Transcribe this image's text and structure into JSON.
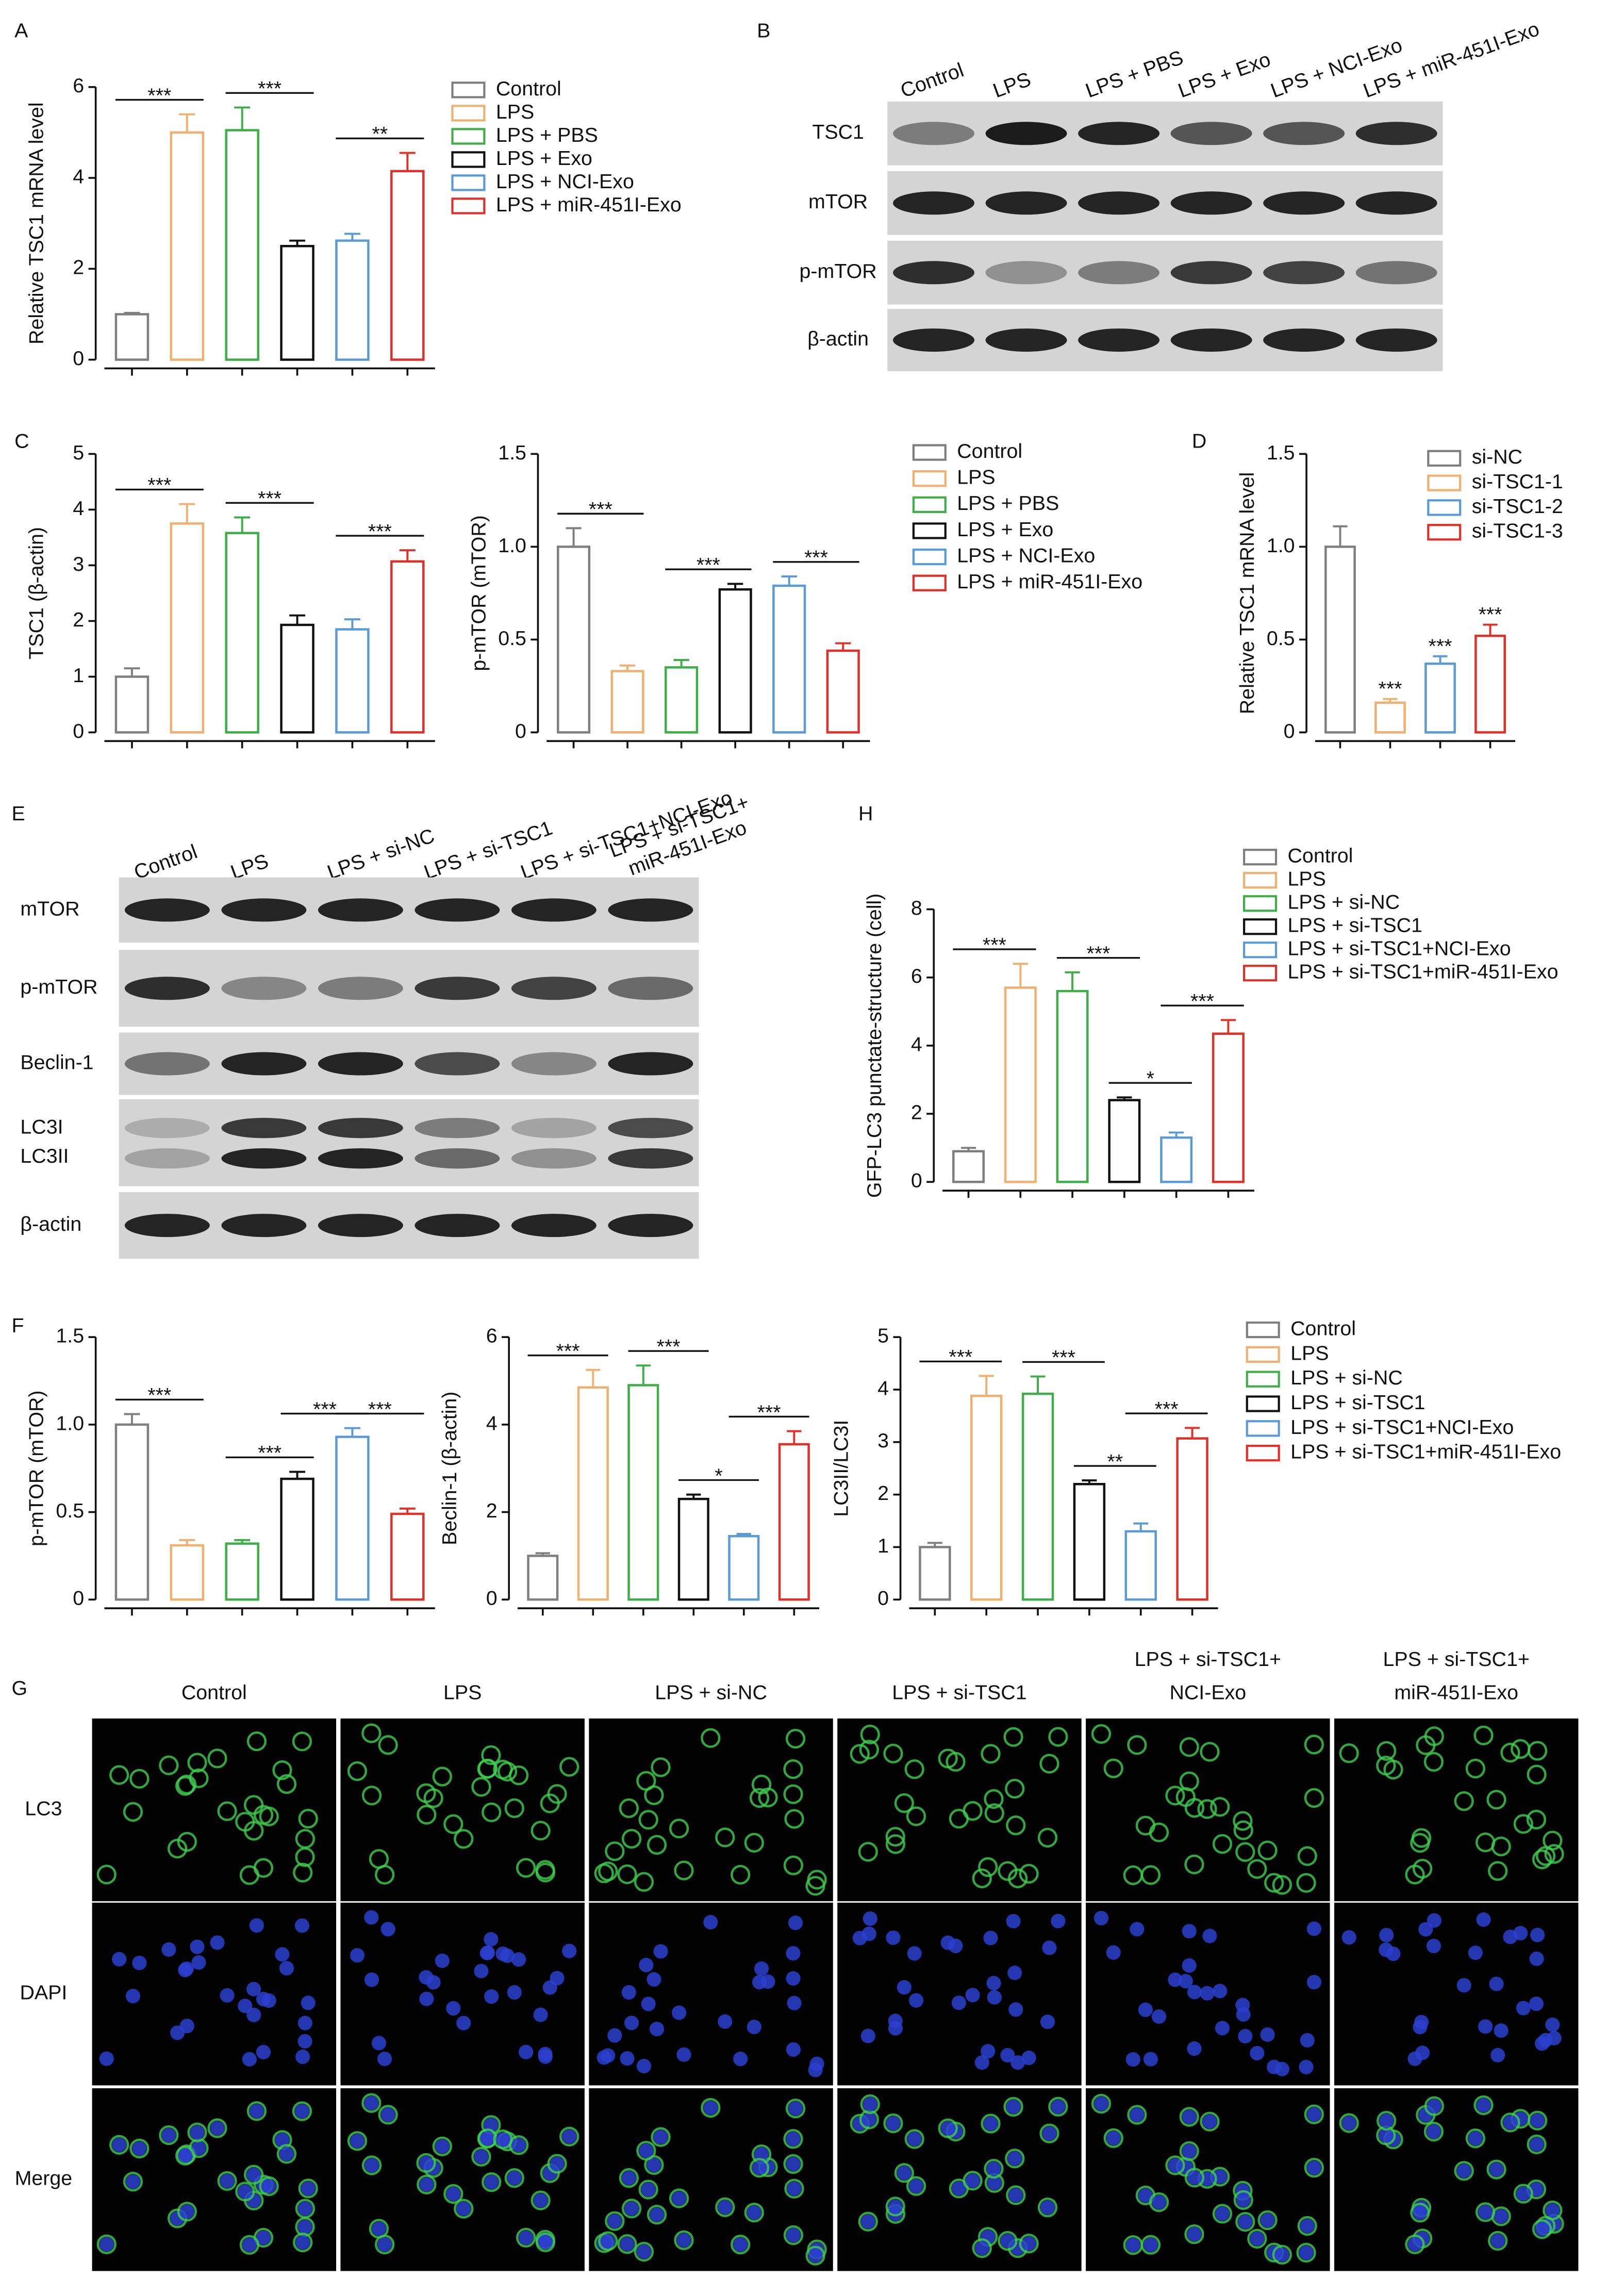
{
  "chart_data": [
    {
      "panel": "A",
      "type": "bar",
      "ylabel": "Relative TSC1 mRNA level",
      "ylim": [
        0,
        6
      ],
      "yticks": [
        0,
        2,
        4,
        6
      ],
      "values": [
        1.0,
        5.0,
        5.05,
        2.5,
        2.62,
        4.15
      ],
      "errors": [
        0.03,
        0.4,
        0.5,
        0.12,
        0.15,
        0.4
      ],
      "colors": [
        "#7f7f7f",
        "#f0b070",
        "#3fae49",
        "#111111",
        "#5b9bd5",
        "#e0302a"
      ],
      "legend": [
        "Control",
        "LPS",
        "LPS + PBS",
        "LPS + Exo",
        "LPS + NCI-Exo",
        "LPS + miR-451I-Exo"
      ],
      "annotations": [
        {
          "text": "***",
          "between": [
            0,
            1
          ]
        },
        {
          "text": "***",
          "between": [
            2,
            3
          ]
        },
        {
          "text": "**",
          "between": [
            4,
            5
          ]
        }
      ]
    },
    {
      "panel": "C",
      "type": "bar",
      "ylabel": "TSC1 (β-actin)",
      "ylim": [
        0,
        5
      ],
      "yticks": [
        0,
        1,
        2,
        3,
        4,
        5
      ],
      "values": [
        1.0,
        3.75,
        3.58,
        1.93,
        1.85,
        3.07
      ],
      "errors": [
        0.15,
        0.35,
        0.28,
        0.17,
        0.18,
        0.2
      ],
      "colors": [
        "#7f7f7f",
        "#f0b070",
        "#3fae49",
        "#111111",
        "#5b9bd5",
        "#e0302a"
      ],
      "annotations": [
        {
          "text": "***",
          "between": [
            0,
            1
          ]
        },
        {
          "text": "***",
          "between": [
            2,
            3
          ]
        },
        {
          "text": "***",
          "between": [
            4,
            5
          ]
        }
      ]
    },
    {
      "type": "bar",
      "ylabel": "p-mTOR (mTOR)",
      "ylim": [
        0,
        1.5
      ],
      "yticks": [
        0,
        0.5,
        {
          "value": 1,
          "label": "1.0"
        },
        1.5
      ],
      "values": [
        1.0,
        0.33,
        0.35,
        0.77,
        0.79,
        0.44
      ],
      "errors": [
        0.1,
        0.03,
        0.04,
        0.03,
        0.05,
        0.04
      ],
      "colors": [
        "#7f7f7f",
        "#f0b070",
        "#3fae49",
        "#111111",
        "#5b9bd5",
        "#e0302a"
      ],
      "legend": [
        "Control",
        "LPS",
        "LPS + PBS",
        "LPS + Exo",
        "LPS + NCI-Exo",
        "LPS + miR-451I-Exo"
      ],
      "annotations": [
        {
          "text": "***",
          "between": [
            0,
            1
          ]
        },
        {
          "text": "***",
          "between": [
            2,
            3
          ]
        },
        {
          "text": "***",
          "between": [
            4,
            5
          ]
        }
      ]
    },
    {
      "panel": "D",
      "type": "bar",
      "ylabel": "Relative TSC1 mRNA level",
      "ylim": [
        0,
        1.5
      ],
      "yticks": [
        0,
        0.5,
        {
          "value": 1,
          "label": "1.0"
        },
        1.5
      ],
      "values": [
        1.0,
        0.16,
        0.37,
        0.52
      ],
      "errors": [
        0.11,
        0.02,
        0.04,
        0.06
      ],
      "colors": [
        "#7f7f7f",
        "#f0b070",
        "#5b9bd5",
        "#e0302a"
      ],
      "legend": [
        "si-NC",
        "si-TSC1-1",
        "si-TSC1-2",
        "si-TSC1-3"
      ],
      "annotations": [
        {
          "text": "***",
          "between": [
            1,
            1
          ]
        },
        {
          "text": "***",
          "between": [
            2,
            2
          ]
        },
        {
          "text": "***",
          "between": [
            3,
            3
          ]
        }
      ]
    },
    {
      "panel": "H",
      "type": "bar",
      "ylabel": "GFP-LC3 punctate-structure (cell)",
      "ylim": [
        0,
        8
      ],
      "yticks": [
        0,
        2,
        4,
        6,
        8
      ],
      "values": [
        0.9,
        5.7,
        5.6,
        2.4,
        1.3,
        4.35
      ],
      "errors": [
        0.1,
        0.7,
        0.55,
        0.08,
        0.15,
        0.4
      ],
      "colors": [
        "#7f7f7f",
        "#f0b070",
        "#3fae49",
        "#111111",
        "#5b9bd5",
        "#e0302a"
      ],
      "legend": [
        "Control",
        "LPS",
        "LPS + si-NC",
        "LPS + si-TSC1",
        "LPS + si-TSC1+NCI-Exo",
        "LPS + si-TSC1+miR-451I-Exo"
      ],
      "annotations": [
        {
          "text": "***",
          "between": [
            0,
            1
          ]
        },
        {
          "text": "***",
          "between": [
            2,
            3
          ]
        },
        {
          "text": "*",
          "between": [
            3,
            4
          ]
        },
        {
          "text": "***",
          "between": [
            4,
            5
          ]
        }
      ]
    },
    {
      "panel": "F",
      "type": "bar",
      "ylabel": "p-mTOR (mTOR)",
      "ylim": [
        0,
        1.5
      ],
      "yticks": [
        0,
        0.5,
        {
          "value": 1,
          "label": "1.0"
        },
        1.5
      ],
      "values": [
        1.0,
        0.31,
        0.32,
        0.69,
        0.93,
        0.49
      ],
      "errors": [
        0.06,
        0.03,
        0.02,
        0.04,
        0.05,
        0.03
      ],
      "colors": [
        "#7f7f7f",
        "#f0b070",
        "#3fae49",
        "#111111",
        "#5b9bd5",
        "#e0302a"
      ],
      "annotations": [
        {
          "text": "***",
          "between": [
            0,
            1
          ]
        },
        {
          "text": "***",
          "between": [
            2,
            3
          ]
        },
        {
          "text": "***",
          "between": [
            3,
            4
          ]
        },
        {
          "text": "***",
          "between": [
            4,
            5
          ]
        }
      ]
    },
    {
      "type": "bar",
      "ylabel": "Beclin-1 (β-actin)",
      "ylim": [
        0,
        6
      ],
      "yticks": [
        0,
        2,
        4,
        6
      ],
      "values": [
        1.0,
        4.85,
        4.9,
        2.3,
        1.45,
        3.55
      ],
      "errors": [
        0.06,
        0.4,
        0.45,
        0.1,
        0.05,
        0.3
      ],
      "colors": [
        "#7f7f7f",
        "#f0b070",
        "#3fae49",
        "#111111",
        "#5b9bd5",
        "#e0302a"
      ],
      "annotations": [
        {
          "text": "***",
          "between": [
            0,
            1
          ]
        },
        {
          "text": "***",
          "between": [
            2,
            3
          ]
        },
        {
          "text": "*",
          "between": [
            3,
            4
          ]
        },
        {
          "text": "***",
          "between": [
            4,
            5
          ]
        }
      ]
    },
    {
      "type": "bar",
      "ylabel": "LC3II/LC3I",
      "ylim": [
        0,
        5
      ],
      "yticks": [
        0,
        1,
        2,
        3,
        4,
        5
      ],
      "values": [
        1.0,
        3.88,
        3.92,
        2.2,
        1.3,
        3.07
      ],
      "errors": [
        0.08,
        0.38,
        0.33,
        0.07,
        0.15,
        0.2
      ],
      "colors": [
        "#7f7f7f",
        "#f0b070",
        "#3fae49",
        "#111111",
        "#5b9bd5",
        "#e0302a"
      ],
      "legend": [
        "Control",
        "LPS",
        "LPS + si-NC",
        "LPS + si-TSC1",
        "LPS + si-TSC1+NCI-Exo",
        "LPS + si-TSC1+miR-451I-Exo"
      ],
      "annotations": [
        {
          "text": "***",
          "between": [
            0,
            1
          ]
        },
        {
          "text": "***",
          "between": [
            2,
            3
          ]
        },
        {
          "text": "**",
          "between": [
            3,
            4
          ]
        },
        {
          "text": "***",
          "between": [
            4,
            5
          ]
        }
      ]
    }
  ],
  "blots": [
    {
      "panel": "B",
      "lanes": [
        "Control",
        "LPS",
        "LPS + PBS",
        "LPS + Exo",
        "LPS + NCI-Exo",
        "LPS + miR-451I-Exo"
      ],
      "rows": [
        "TSC1",
        "mTOR",
        "p-mTOR",
        "β-actin"
      ]
    },
    {
      "panel": "E",
      "lanes": [
        "Control",
        "LPS",
        "LPS + si-NC",
        "LPS + si-TSC1",
        "LPS + si-TSC1+NCI-Exo",
        [
          "LPS + si-TSC1+",
          "miR-451I-Exo"
        ]
      ],
      "rows": [
        "mTOR",
        "p-mTOR",
        "Beclin-1",
        [
          "LC3I",
          "LC3II"
        ],
        "β-actin"
      ]
    }
  ],
  "microscopy": {
    "panel": "G",
    "columns": [
      "Control",
      "LPS",
      "LPS + si-NC",
      "LPS + si-TSC1",
      [
        "LPS + si-TSC1+",
        "NCI-Exo"
      ],
      [
        "LPS + si-TSC1+",
        "miR-451I-Exo"
      ]
    ],
    "rows": [
      "LC3",
      "DAPI",
      "Merge"
    ]
  }
}
